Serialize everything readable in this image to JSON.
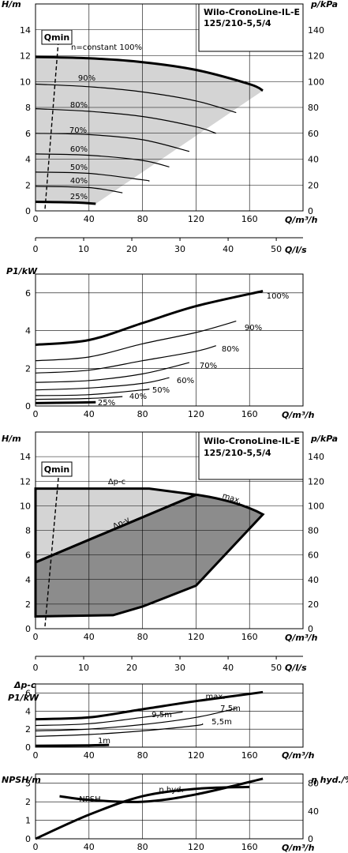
{
  "chart_data": [
    {
      "type": "line",
      "header": [
        "Wilo-CronoLine-IL-E",
        "125/210-5,5/4"
      ],
      "ylabel_left": "H/m",
      "ylabel_right": "p/kPa",
      "xlabel": "Q/m³/h",
      "xlabel2": "Q/l/s",
      "qmin_label": "Qmin",
      "x_ticks": [
        "0",
        "40",
        "80",
        "120",
        "160"
      ],
      "x2_ticks": [
        "0",
        "10",
        "20",
        "30",
        "40",
        "50"
      ],
      "y_ticks": [
        "0",
        "2",
        "4",
        "6",
        "8",
        "10",
        "12",
        "14"
      ],
      "yr_ticks": [
        "0",
        "20",
        "40",
        "60",
        "80",
        "100",
        "120",
        "140"
      ],
      "xlim": [
        0,
        200
      ],
      "ylim": [
        0,
        16
      ],
      "constant_label": "n=constant 100%",
      "series": [
        {
          "name": "100%",
          "x": [
            0,
            40,
            80,
            120,
            160,
            170
          ],
          "y": [
            11.9,
            11.8,
            11.5,
            10.9,
            9.8,
            9.3
          ]
        },
        {
          "name": "90%",
          "x": [
            0,
            40,
            80,
            120,
            150
          ],
          "y": [
            9.8,
            9.6,
            9.2,
            8.5,
            7.6
          ]
        },
        {
          "name": "80%",
          "x": [
            0,
            40,
            80,
            120,
            135
          ],
          "y": [
            7.9,
            7.7,
            7.3,
            6.5,
            6.0
          ]
        },
        {
          "name": "70%",
          "x": [
            0,
            40,
            80,
            115
          ],
          "y": [
            6.0,
            5.9,
            5.5,
            4.6
          ]
        },
        {
          "name": "60%",
          "x": [
            0,
            40,
            80,
            100
          ],
          "y": [
            4.4,
            4.3,
            3.9,
            3.4
          ]
        },
        {
          "name": "50%",
          "x": [
            0,
            40,
            80,
            85
          ],
          "y": [
            3.0,
            2.9,
            2.4,
            2.3
          ]
        },
        {
          "name": "40%",
          "x": [
            0,
            40,
            65
          ],
          "y": [
            1.9,
            1.8,
            1.4
          ]
        },
        {
          "name": "25%",
          "x": [
            0,
            30,
            45
          ],
          "y": [
            0.7,
            0.65,
            0.55
          ]
        }
      ]
    },
    {
      "type": "line",
      "ylabel": "P1/kW",
      "xlabel": "Q/m³/h",
      "x_ticks": [
        "0",
        "40",
        "80",
        "120",
        "160"
      ],
      "y_ticks": [
        "0",
        "2",
        "4",
        "6"
      ],
      "xlim": [
        0,
        200
      ],
      "ylim": [
        0,
        7
      ],
      "series": [
        {
          "name": "100%",
          "x": [
            0,
            40,
            80,
            120,
            170
          ],
          "y": [
            3.25,
            3.5,
            4.4,
            5.3,
            6.1
          ]
        },
        {
          "name": "90%",
          "x": [
            0,
            40,
            80,
            120,
            150
          ],
          "y": [
            2.4,
            2.6,
            3.3,
            3.9,
            4.5
          ]
        },
        {
          "name": "80%",
          "x": [
            0,
            40,
            80,
            120,
            135
          ],
          "y": [
            1.75,
            1.9,
            2.4,
            2.9,
            3.2
          ]
        },
        {
          "name": "70%",
          "x": [
            0,
            40,
            80,
            115
          ],
          "y": [
            1.25,
            1.35,
            1.7,
            2.3
          ]
        },
        {
          "name": "60%",
          "x": [
            0,
            40,
            80,
            100
          ],
          "y": [
            0.85,
            0.95,
            1.2,
            1.5
          ]
        },
        {
          "name": "50%",
          "x": [
            0,
            40,
            80,
            85
          ],
          "y": [
            0.55,
            0.6,
            0.85,
            0.9
          ]
        },
        {
          "name": "40%",
          "x": [
            0,
            40,
            65
          ],
          "y": [
            0.35,
            0.4,
            0.5
          ]
        },
        {
          "name": "25%",
          "x": [
            0,
            30,
            45
          ],
          "y": [
            0.15,
            0.18,
            0.2
          ]
        }
      ]
    },
    {
      "type": "area",
      "header": [
        "Wilo-CronoLine-IL-E",
        "125/210-5,5/4"
      ],
      "ylabel_left": "H/m",
      "ylabel_right": "p/kPa",
      "xlabel": "Q/m³/h",
      "xlabel2": "Q/l/s",
      "qmin_label": "Qmin",
      "x_ticks": [
        "0",
        "40",
        "80",
        "120",
        "160"
      ],
      "x2_ticks": [
        "0",
        "10",
        "20",
        "30",
        "40",
        "50"
      ],
      "y_ticks": [
        "0",
        "2",
        "4",
        "6",
        "8",
        "10",
        "12",
        "14"
      ],
      "yr_ticks": [
        "0",
        "20",
        "40",
        "60",
        "80",
        "100",
        "120",
        "140"
      ],
      "xlim": [
        0,
        200
      ],
      "ylim": [
        0,
        16
      ],
      "labels": [
        "Δp-c",
        "Δp-v",
        "max."
      ],
      "series": [
        {
          "name": "Δp-c",
          "x": [
            0,
            85,
            120,
            150,
            170
          ],
          "y": [
            11.4,
            11.4,
            10.9,
            10.3,
            9.3
          ]
        },
        {
          "name": "Δp-v",
          "x": [
            0,
            120
          ],
          "y": [
            5.4,
            10.9
          ]
        },
        {
          "name": "max.",
          "x": [
            120,
            150,
            170
          ],
          "y": [
            10.9,
            10.3,
            9.3
          ]
        }
      ]
    },
    {
      "type": "line",
      "ylabel": "Δp-c P1/kW",
      "xlabel": "Q/m³/h",
      "x_ticks": [
        "0",
        "40",
        "80",
        "120",
        "160"
      ],
      "y_ticks": [
        "0",
        "2",
        "4",
        "6"
      ],
      "xlim": [
        0,
        200
      ],
      "ylim": [
        0,
        7
      ],
      "series": [
        {
          "name": "max.",
          "x": [
            0,
            40,
            80,
            120,
            170
          ],
          "y": [
            3.1,
            3.3,
            4.2,
            5.1,
            6.1
          ]
        },
        {
          "name": "9,5m",
          "x": [
            0,
            40,
            80,
            110
          ],
          "y": [
            2.4,
            2.6,
            3.3,
            3.9
          ]
        },
        {
          "name": "7,5m",
          "x": [
            0,
            40,
            80,
            120,
            150
          ],
          "y": [
            1.8,
            2.0,
            2.5,
            3.3,
            4.3
          ]
        },
        {
          "name": "5,5m",
          "x": [
            0,
            40,
            80,
            120,
            125
          ],
          "y": [
            1.2,
            1.4,
            1.8,
            2.4,
            2.6
          ]
        },
        {
          "name": "1m",
          "x": [
            0,
            40,
            55
          ],
          "y": [
            0.15,
            0.2,
            0.25
          ]
        }
      ]
    },
    {
      "type": "line",
      "ylabel_left": "NPSH/m",
      "ylabel_right": "η hyd./%",
      "xlabel": "Q/m³/h",
      "x_ticks": [
        "0",
        "40",
        "80",
        "120",
        "160"
      ],
      "y_ticks": [
        "0",
        "1",
        "2",
        "3"
      ],
      "yr_ticks": [
        "0",
        "40",
        "80"
      ],
      "xlim": [
        0,
        200
      ],
      "ylim": [
        0,
        3.5
      ],
      "series": [
        {
          "name": "NPSH",
          "x": [
            18,
            40,
            80,
            120,
            170
          ],
          "y": [
            2.3,
            2.1,
            2.0,
            2.4,
            3.25
          ]
        },
        {
          "name": "η hyd.",
          "x": [
            0,
            40,
            80,
            120,
            160
          ],
          "y": [
            0.0,
            1.3,
            2.3,
            2.7,
            2.8
          ]
        }
      ]
    }
  ]
}
